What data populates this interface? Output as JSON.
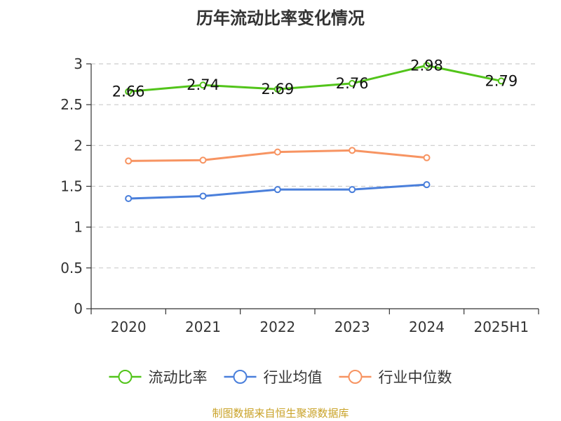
{
  "chart_data": {
    "type": "line",
    "title": "历年流动比率变化情况",
    "categories": [
      "2020",
      "2021",
      "2022",
      "2023",
      "2024",
      "2025H1"
    ],
    "ylim": [
      0,
      3
    ],
    "yticks": [
      0,
      0.5,
      1,
      1.5,
      2,
      2.5,
      3
    ],
    "grid": true,
    "legend_position": "bottom",
    "series": [
      {
        "name": "流动比率",
        "color": "#52c41a",
        "values": [
          2.66,
          2.74,
          2.69,
          2.76,
          2.98,
          2.79
        ],
        "show_labels": true
      },
      {
        "name": "行业均值",
        "color": "#4a7fdb",
        "values": [
          1.35,
          1.38,
          1.46,
          1.46,
          1.52,
          null
        ],
        "show_labels": false
      },
      {
        "name": "行业中位数",
        "color": "#f79462",
        "values": [
          1.81,
          1.82,
          1.92,
          1.94,
          1.85,
          null
        ],
        "show_labels": false
      }
    ]
  },
  "footer": {
    "source": "制图数据来自恒生聚源数据库"
  }
}
